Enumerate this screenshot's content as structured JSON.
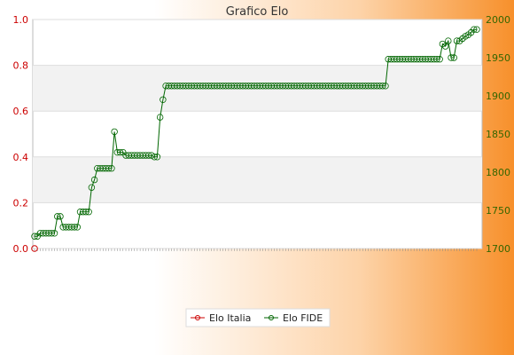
{
  "chart_data": {
    "type": "line",
    "title": "Grafico Elo",
    "y_left_ticks": [
      "0.0",
      "0.2",
      "0.4",
      "0.6",
      "0.8",
      "1.0"
    ],
    "y_left_range": [
      0,
      1
    ],
    "y_right_ticks": [
      "1700",
      "1750",
      "1800",
      "1850",
      "1900",
      "1950",
      "2000"
    ],
    "y_right_range": [
      1700,
      2000
    ],
    "grid": true,
    "legend_position": "bottom",
    "colors": {
      "elo_italia": "#cc0000",
      "elo_fide": "#006600"
    },
    "series": [
      {
        "name": "Elo Italia",
        "axis": "left",
        "values": [
          0
        ]
      },
      {
        "name": "Elo FIDE",
        "axis": "right",
        "values": [
          1716,
          1716,
          1720,
          1720,
          1720,
          1720,
          1720,
          1720,
          1742,
          1742,
          1728,
          1728,
          1728,
          1728,
          1728,
          1728,
          1748,
          1748,
          1748,
          1748,
          1780,
          1790,
          1805,
          1805,
          1805,
          1805,
          1805,
          1805,
          1853,
          1826,
          1826,
          1826,
          1822,
          1822,
          1822,
          1822,
          1822,
          1822,
          1822,
          1822,
          1822,
          1822,
          1820,
          1820,
          1872,
          1895,
          1913,
          1913,
          1913,
          1913,
          1913,
          1913,
          1913,
          1913,
          1913,
          1913,
          1913,
          1913,
          1913,
          1913,
          1913,
          1913,
          1913,
          1913,
          1913,
          1913,
          1913,
          1913,
          1913,
          1913,
          1913,
          1913,
          1913,
          1913,
          1913,
          1913,
          1913,
          1913,
          1913,
          1913,
          1913,
          1913,
          1913,
          1913,
          1913,
          1913,
          1913,
          1913,
          1913,
          1913,
          1913,
          1913,
          1913,
          1913,
          1913,
          1913,
          1913,
          1913,
          1913,
          1913,
          1913,
          1913,
          1913,
          1913,
          1913,
          1913,
          1913,
          1913,
          1913,
          1913,
          1913,
          1913,
          1913,
          1913,
          1913,
          1913,
          1913,
          1913,
          1913,
          1913,
          1913,
          1913,
          1913,
          1913,
          1948,
          1948,
          1948,
          1948,
          1948,
          1948,
          1948,
          1948,
          1948,
          1948,
          1948,
          1948,
          1948,
          1948,
          1948,
          1948,
          1948,
          1948,
          1948,
          1968,
          1965,
          1972,
          1950,
          1950,
          1972,
          1972,
          1975,
          1978,
          1980,
          1983,
          1987,
          1987
        ]
      }
    ]
  }
}
